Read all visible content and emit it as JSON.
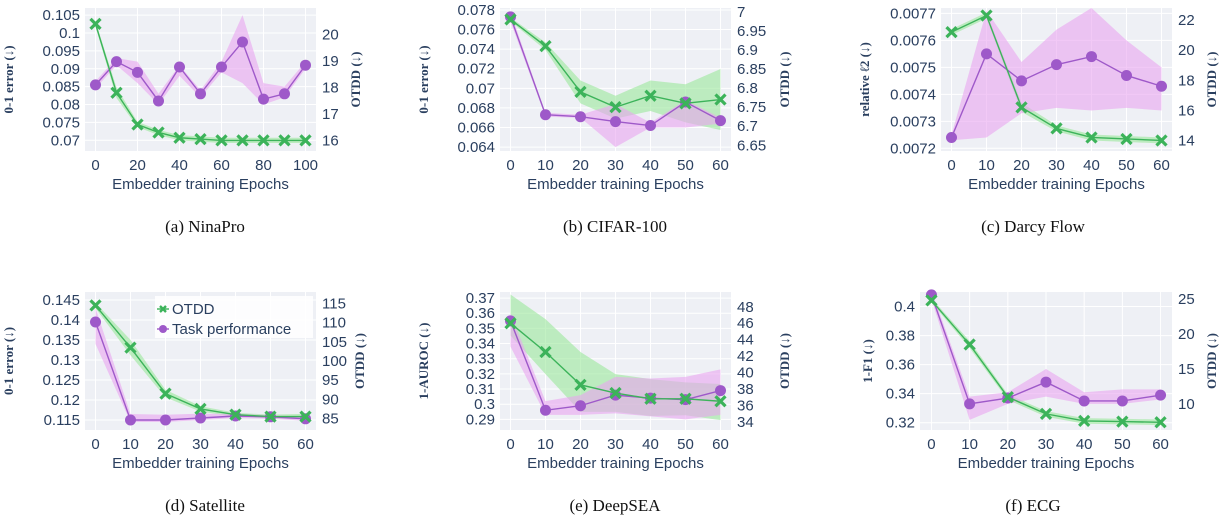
{
  "colors": {
    "otdd": "#3cb35a",
    "otdd_band": "#9be89b",
    "task": "#9e59c9",
    "task_band": "#e9a5f0",
    "overlap_band": "#a9a9a9",
    "plot_bg": "#eef0f5",
    "grid": "#ffffff",
    "axis_text": "#2a3f5f"
  },
  "panels": [
    {
      "caption": "(a) NinaPro",
      "xlabel": "Embedder training Epochs",
      "ylabel_left": "0-1 error (↓)",
      "ylabel_right": "OTDD (↓)",
      "x_ticks": [
        "0",
        "20",
        "40",
        "60",
        "80",
        "100"
      ],
      "x_ticks_values": [
        0,
        20,
        40,
        60,
        80,
        100
      ],
      "xlim": [
        -5,
        105
      ],
      "left_ticks": [
        "0.07",
        "0.075",
        "0.08",
        "0.085",
        "0.09",
        "0.095",
        "0.1",
        "0.105"
      ],
      "left_ticks_values": [
        0.07,
        0.075,
        0.08,
        0.085,
        0.09,
        0.095,
        0.1,
        0.105
      ],
      "left_lim": [
        0.067,
        0.107
      ],
      "right_ticks": [
        "16",
        "17",
        "18",
        "19",
        "20"
      ],
      "right_ticks_values": [
        16,
        17,
        18,
        19,
        20
      ],
      "right_lim": [
        15.6,
        21.0
      ],
      "legend": null
    },
    {
      "caption": "(b) CIFAR-100",
      "xlabel": "Embedder training Epochs",
      "ylabel_left": "0-1 error (↓)",
      "ylabel_right": "OTDD (↓)",
      "x_ticks": [
        "0",
        "10",
        "20",
        "30",
        "40",
        "50",
        "60"
      ],
      "x_ticks_values": [
        0,
        10,
        20,
        30,
        40,
        50,
        60
      ],
      "xlim": [
        -3,
        63
      ],
      "left_ticks": [
        "0.064",
        "0.066",
        "0.068",
        "0.07",
        "0.072",
        "0.074",
        "0.076",
        "0.078"
      ],
      "left_ticks_values": [
        0.064,
        0.066,
        0.068,
        0.07,
        0.072,
        0.074,
        0.076,
        0.078
      ],
      "left_lim": [
        0.0636,
        0.0782
      ],
      "right_ticks": [
        "6.65",
        "6.7",
        "6.75",
        "6.8",
        "6.85",
        "6.9",
        "6.95",
        "7"
      ],
      "right_ticks_values": [
        6.65,
        6.7,
        6.75,
        6.8,
        6.85,
        6.9,
        6.95,
        7.0
      ],
      "right_lim": [
        6.635,
        7.01
      ],
      "legend": null
    },
    {
      "caption": "(c) Darcy Flow",
      "xlabel": "Embedder training Epochs",
      "ylabel_left": "relative ℓ2 (↓)",
      "ylabel_right": "OTDD (↓)",
      "x_ticks": [
        "0",
        "10",
        "20",
        "30",
        "40",
        "50",
        "60"
      ],
      "x_ticks_values": [
        0,
        10,
        20,
        30,
        40,
        50,
        60
      ],
      "xlim": [
        -3,
        63
      ],
      "left_ticks": [
        "0.0072",
        "0.0073",
        "0.0074",
        "0.0075",
        "0.0076",
        "0.0077"
      ],
      "left_ticks_values": [
        0.0072,
        0.0073,
        0.0074,
        0.0075,
        0.0076,
        0.0077
      ],
      "left_lim": [
        0.00719,
        0.00772
      ],
      "right_ticks": [
        "14",
        "16",
        "18",
        "20",
        "22"
      ],
      "right_ticks_values": [
        14,
        16,
        18,
        20,
        22
      ],
      "right_lim": [
        13.3,
        22.8
      ],
      "legend": null
    },
    {
      "caption": "(d) Satellite",
      "xlabel": "Embedder training Epochs",
      "ylabel_left": "0-1 error (↓)",
      "ylabel_right": "OTDD (↓)",
      "x_ticks": [
        "0",
        "10",
        "20",
        "30",
        "40",
        "50",
        "60"
      ],
      "x_ticks_values": [
        0,
        10,
        20,
        30,
        40,
        50,
        60
      ],
      "xlim": [
        -3,
        63
      ],
      "left_ticks": [
        "0.115",
        "0.12",
        "0.125",
        "0.13",
        "0.135",
        "0.14",
        "0.145"
      ],
      "left_ticks_values": [
        0.115,
        0.12,
        0.125,
        0.13,
        0.135,
        0.14,
        0.145
      ],
      "left_lim": [
        0.1125,
        0.147
      ],
      "right_ticks": [
        "85",
        "90",
        "95",
        "100",
        "105",
        "110",
        "115"
      ],
      "right_ticks_values": [
        85,
        90,
        95,
        100,
        105,
        110,
        115
      ],
      "right_lim": [
        82.0,
        118.0
      ],
      "legend": {
        "otdd": "OTDD",
        "task": "Task performance"
      }
    },
    {
      "caption": "(e) DeepSEA",
      "xlabel": "Embedder training Epochs",
      "ylabel_left": "1-AUROC (↓)",
      "ylabel_right": "OTDD (↓)",
      "x_ticks": [
        "0",
        "10",
        "20",
        "30",
        "40",
        "50",
        "60"
      ],
      "x_ticks_values": [
        0,
        10,
        20,
        30,
        40,
        50,
        60
      ],
      "xlim": [
        -3,
        63
      ],
      "left_ticks": [
        "0.29",
        "0.3",
        "0.31",
        "0.32",
        "0.33",
        "0.34",
        "0.35",
        "0.36",
        "0.37"
      ],
      "left_ticks_values": [
        0.29,
        0.3,
        0.31,
        0.32,
        0.33,
        0.34,
        0.35,
        0.36,
        0.37
      ],
      "left_lim": [
        0.283,
        0.374
      ],
      "right_ticks": [
        "34",
        "36",
        "38",
        "40",
        "42",
        "44",
        "46",
        "48"
      ],
      "right_ticks_values": [
        34,
        36,
        38,
        40,
        42,
        44,
        46,
        48
      ],
      "right_lim": [
        33.0,
        49.8
      ],
      "legend": null
    },
    {
      "caption": "(f) ECG",
      "xlabel": "Embedder training Epochs",
      "ylabel_left": "1-F1 (↓)",
      "ylabel_right": "OTDD (↓)",
      "x_ticks": [
        "0",
        "10",
        "20",
        "30",
        "40",
        "50",
        "60"
      ],
      "x_ticks_values": [
        0,
        10,
        20,
        30,
        40,
        50,
        60
      ],
      "xlim": [
        -3,
        63
      ],
      "left_ticks": [
        "0.32",
        "0.34",
        "0.36",
        "0.38",
        "0.4"
      ],
      "left_ticks_values": [
        0.32,
        0.34,
        0.36,
        0.38,
        0.4
      ],
      "left_lim": [
        0.315,
        0.41
      ],
      "right_ticks": [
        "10",
        "15",
        "20",
        "25"
      ],
      "right_ticks_values": [
        10,
        15,
        20,
        25
      ],
      "right_lim": [
        6.3,
        26.0
      ],
      "legend": null
    }
  ],
  "chart_data": [
    {
      "type": "line",
      "subplot": "(a) NinaPro",
      "xlabel": "Embedder training Epochs",
      "ylabel": "0-1 error (↓)",
      "ylabel_right": "OTDD (↓)",
      "x": [
        0,
        10,
        20,
        30,
        40,
        50,
        60,
        70,
        80,
        90,
        100
      ],
      "series": [
        {
          "name": "OTDD",
          "axis": "right",
          "values": [
            20.4,
            17.8,
            16.6,
            16.3,
            16.1,
            16.05,
            16.0,
            16.0,
            16.0,
            16.0,
            16.0
          ],
          "band_lower": [
            20.3,
            17.6,
            16.5,
            16.2,
            16.0,
            15.95,
            15.9,
            15.9,
            15.9,
            15.9,
            15.9
          ],
          "band_upper": [
            20.5,
            18.0,
            16.7,
            16.4,
            16.2,
            16.15,
            16.1,
            16.1,
            16.1,
            16.1,
            16.1
          ]
        },
        {
          "name": "Task performance",
          "axis": "left",
          "values": [
            0.0855,
            0.092,
            0.089,
            0.081,
            0.0905,
            0.083,
            0.0905,
            0.0975,
            0.0815,
            0.083,
            0.091
          ],
          "band_lower": [
            0.0845,
            0.091,
            0.086,
            0.08,
            0.088,
            0.082,
            0.089,
            0.086,
            0.08,
            0.082,
            0.09
          ],
          "band_upper": [
            0.0865,
            0.093,
            0.092,
            0.083,
            0.091,
            0.084,
            0.092,
            0.105,
            0.086,
            0.085,
            0.092
          ]
        }
      ]
    },
    {
      "type": "line",
      "subplot": "(b) CIFAR-100",
      "xlabel": "Embedder training Epochs",
      "ylabel": "0-1 error (↓)",
      "ylabel_right": "OTDD (↓)",
      "x": [
        0,
        10,
        20,
        30,
        40,
        50,
        60
      ],
      "series": [
        {
          "name": "OTDD",
          "axis": "right",
          "values": [
            6.98,
            6.91,
            6.79,
            6.75,
            6.78,
            6.76,
            6.77
          ],
          "band_lower": [
            6.975,
            6.9,
            6.76,
            6.72,
            6.74,
            6.71,
            6.69
          ],
          "band_upper": [
            6.985,
            6.92,
            6.82,
            6.78,
            6.82,
            6.81,
            6.85
          ]
        },
        {
          "name": "Task performance",
          "axis": "left",
          "values": [
            0.0773,
            0.0673,
            0.0671,
            0.0666,
            0.0662,
            0.0686,
            0.0667
          ],
          "band_lower": [
            0.0768,
            0.0671,
            0.067,
            0.064,
            0.066,
            0.066,
            0.0664
          ],
          "band_upper": [
            0.0778,
            0.0675,
            0.0673,
            0.0684,
            0.0665,
            0.0688,
            0.067
          ]
        }
      ]
    },
    {
      "type": "line",
      "subplot": "(c) Darcy Flow",
      "xlabel": "Embedder training Epochs",
      "ylabel": "relative ℓ2 (↓)",
      "ylabel_right": "OTDD (↓)",
      "x": [
        0,
        10,
        20,
        30,
        40,
        50,
        60
      ],
      "series": [
        {
          "name": "OTDD",
          "axis": "right",
          "values": [
            21.2,
            22.3,
            16.2,
            14.8,
            14.2,
            14.1,
            14.0
          ],
          "band_lower": [
            21.0,
            22.1,
            15.9,
            14.6,
            14.0,
            13.9,
            13.8
          ],
          "band_upper": [
            21.4,
            22.5,
            16.5,
            15.0,
            14.4,
            14.3,
            14.2
          ]
        },
        {
          "name": "Task performance",
          "axis": "left",
          "values": [
            0.00724,
            0.00755,
            0.00745,
            0.00751,
            0.00754,
            0.00747,
            0.00743
          ],
          "band_lower": [
            0.00723,
            0.00724,
            0.00733,
            0.00735,
            0.00734,
            0.00735,
            0.00734
          ],
          "band_upper": [
            0.00725,
            0.00771,
            0.00752,
            0.00764,
            0.00772,
            0.0076,
            0.0075
          ]
        }
      ]
    },
    {
      "type": "line",
      "subplot": "(d) Satellite",
      "xlabel": "Embedder training Epochs",
      "ylabel": "0-1 error (↓)",
      "ylabel_right": "OTDD (↓)",
      "x": [
        0,
        10,
        20,
        30,
        40,
        50,
        60
      ],
      "series": [
        {
          "name": "OTDD",
          "axis": "right",
          "values": [
            114.5,
            103.5,
            91.5,
            87.5,
            86.0,
            85.5,
            85.5
          ],
          "band_lower": [
            113.8,
            101.5,
            90.5,
            86.8,
            85.5,
            85.0,
            84.8
          ],
          "band_upper": [
            115.2,
            105.5,
            92.5,
            88.2,
            86.5,
            86.0,
            86.2
          ]
        },
        {
          "name": "Task performance",
          "axis": "left",
          "values": [
            0.1395,
            0.115,
            0.115,
            0.1155,
            0.116,
            0.1158,
            0.1153
          ],
          "band_lower": [
            0.134,
            0.1145,
            0.1145,
            0.115,
            0.1155,
            0.1153,
            0.1148
          ],
          "band_upper": [
            0.143,
            0.1165,
            0.1163,
            0.1166,
            0.1165,
            0.1162,
            0.1158
          ]
        }
      ]
    },
    {
      "type": "line",
      "subplot": "(e) DeepSEA",
      "xlabel": "Embedder training Epochs",
      "ylabel": "1-AUROC (↓)",
      "ylabel_right": "OTDD (↓)",
      "x": [
        0,
        10,
        20,
        30,
        40,
        50,
        60
      ],
      "series": [
        {
          "name": "OTDD",
          "axis": "right",
          "values": [
            46.0,
            42.5,
            38.5,
            37.5,
            36.8,
            36.8,
            36.5
          ],
          "band_lower": [
            44.5,
            39.8,
            35.2,
            35.2,
            34.7,
            34.8,
            34.2
          ],
          "band_upper": [
            49.5,
            46.5,
            42.5,
            39.8,
            39.2,
            38.8,
            38.6
          ]
        },
        {
          "name": "Task performance",
          "axis": "left",
          "values": [
            0.355,
            0.296,
            0.299,
            0.306,
            0.304,
            0.303,
            0.309
          ],
          "band_lower": [
            0.338,
            0.293,
            0.293,
            0.294,
            0.292,
            0.29,
            0.293
          ],
          "band_upper": [
            0.36,
            0.302,
            0.306,
            0.318,
            0.317,
            0.318,
            0.323
          ]
        }
      ]
    },
    {
      "type": "line",
      "subplot": "(f) ECG",
      "xlabel": "Embedder training Epochs",
      "ylabel": "1-F1 (↓)",
      "ylabel_right": "OTDD (↓)",
      "x": [
        0,
        10,
        20,
        30,
        40,
        50,
        60
      ],
      "series": [
        {
          "name": "OTDD",
          "axis": "right",
          "values": [
            24.8,
            18.5,
            11.0,
            8.6,
            7.6,
            7.5,
            7.4
          ],
          "band_lower": [
            24.5,
            18.0,
            10.6,
            8.2,
            7.2,
            7.1,
            7.0
          ],
          "band_upper": [
            25.1,
            19.0,
            11.4,
            9.0,
            8.0,
            7.9,
            7.8
          ]
        },
        {
          "name": "Task performance",
          "axis": "left",
          "values": [
            0.408,
            0.333,
            0.337,
            0.348,
            0.335,
            0.335,
            0.339
          ],
          "band_lower": [
            0.405,
            0.322,
            0.333,
            0.338,
            0.333,
            0.333,
            0.336
          ],
          "band_upper": [
            0.411,
            0.338,
            0.341,
            0.357,
            0.341,
            0.343,
            0.343
          ]
        }
      ]
    }
  ]
}
